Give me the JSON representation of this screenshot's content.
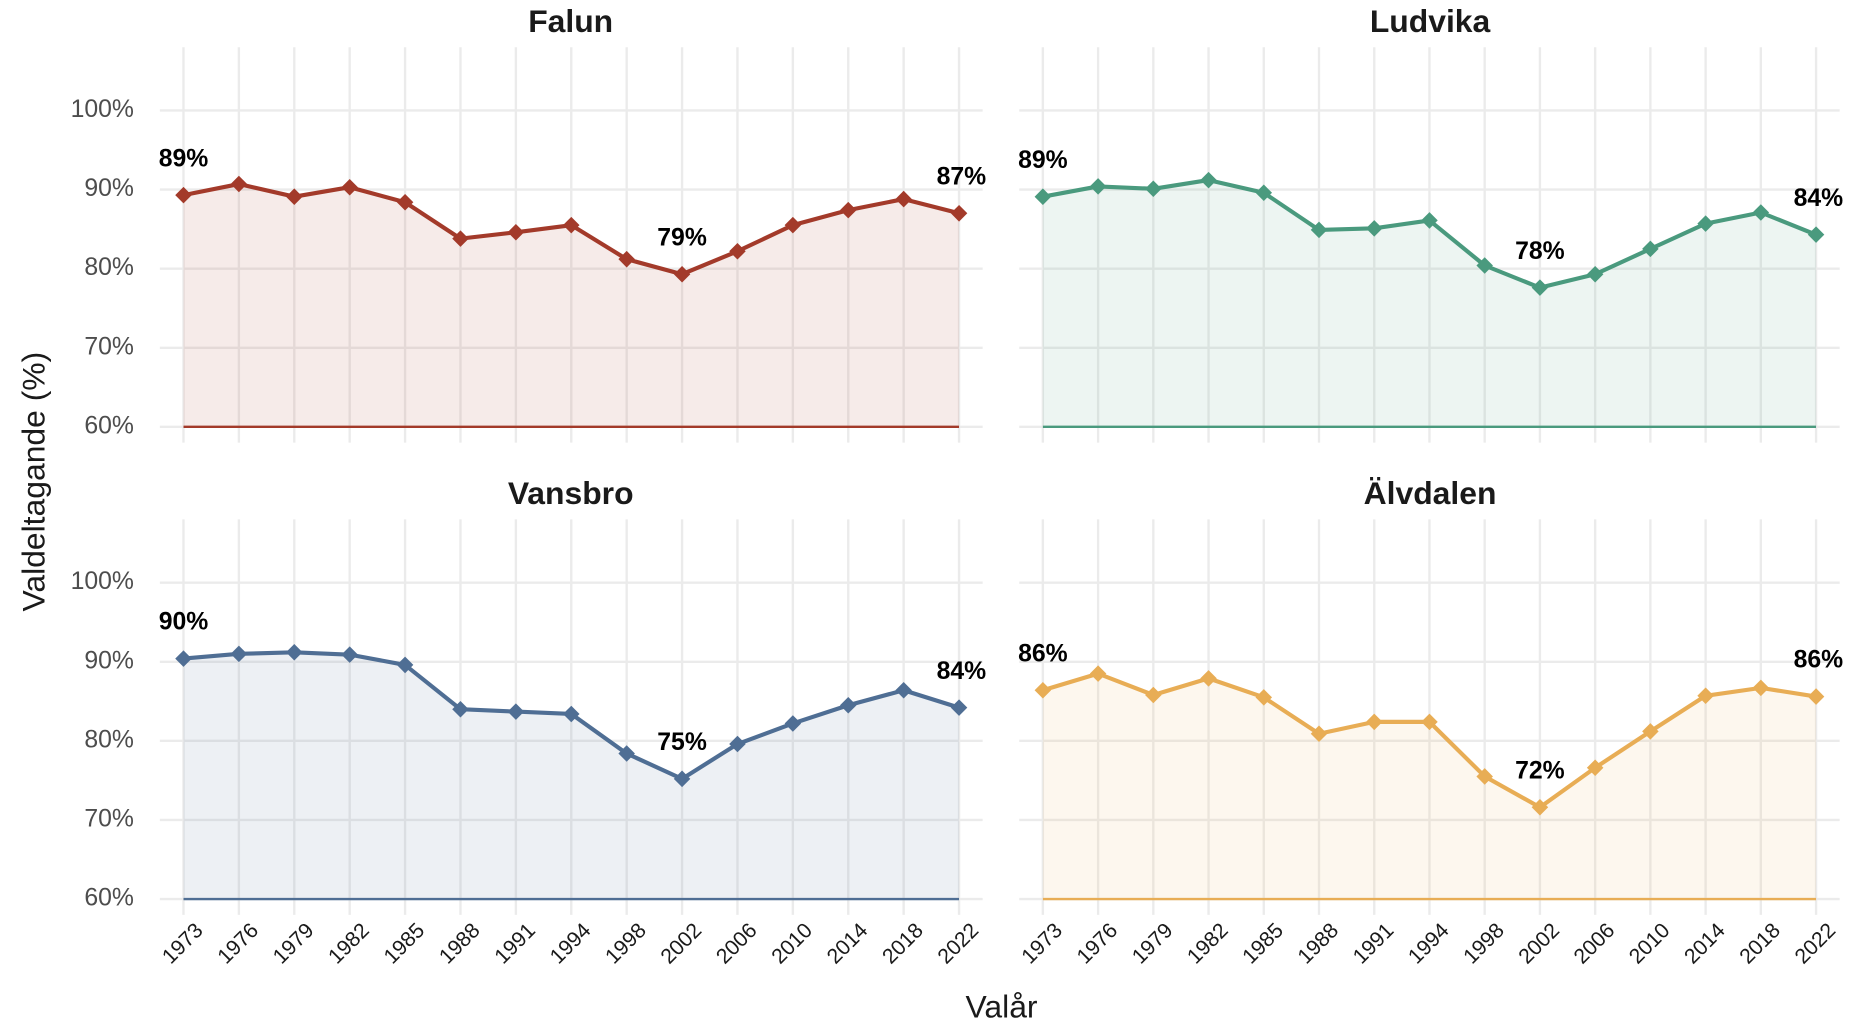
{
  "ylabel": "Valdeltagande (%)",
  "xlabel": "Valår",
  "chart_data": [
    {
      "type": "line",
      "title": "Falun",
      "color": "#a33a2a",
      "categories": [
        1973,
        1976,
        1979,
        1982,
        1985,
        1988,
        1991,
        1994,
        1998,
        2002,
        2006,
        2010,
        2014,
        2018,
        2022
      ],
      "values": [
        89.3,
        90.7,
        89.1,
        90.3,
        88.4,
        83.8,
        84.6,
        85.5,
        81.2,
        79.3,
        82.2,
        85.5,
        87.4,
        88.8,
        87.0
      ],
      "value_labels": [
        "89%",
        null,
        null,
        null,
        null,
        null,
        null,
        null,
        null,
        "79%",
        null,
        null,
        null,
        null,
        "87%"
      ],
      "ylim": [
        58,
        108
      ],
      "yticks": [
        {
          "value": 60,
          "label": "60%"
        },
        {
          "value": 70,
          "label": "70%"
        },
        {
          "value": 80,
          "label": "80%"
        },
        {
          "value": 90,
          "label": "90%"
        },
        {
          "value": 100,
          "label": "100%"
        }
      ],
      "grid": true
    },
    {
      "type": "line",
      "title": "Ludvika",
      "color": "#4a9a7e",
      "categories": [
        1973,
        1976,
        1979,
        1982,
        1985,
        1988,
        1991,
        1994,
        1998,
        2002,
        2006,
        2010,
        2014,
        2018,
        2022
      ],
      "values": [
        89.1,
        90.4,
        90.1,
        91.2,
        89.6,
        84.9,
        85.1,
        86.1,
        80.4,
        77.6,
        79.3,
        82.5,
        85.7,
        87.1,
        84.3
      ],
      "value_labels": [
        "89%",
        null,
        null,
        null,
        null,
        null,
        null,
        null,
        null,
        "78%",
        null,
        null,
        null,
        null,
        "84%"
      ],
      "ylim": [
        58,
        108
      ],
      "yticks": [
        {
          "value": 60,
          "label": "60%"
        },
        {
          "value": 70,
          "label": "70%"
        },
        {
          "value": 80,
          "label": "80%"
        },
        {
          "value": 90,
          "label": "90%"
        },
        {
          "value": 100,
          "label": "100%"
        }
      ],
      "grid": true
    },
    {
      "type": "line",
      "title": "Vansbro",
      "color": "#4f6e94",
      "categories": [
        1973,
        1976,
        1979,
        1982,
        1985,
        1988,
        1991,
        1994,
        1998,
        2002,
        2006,
        2010,
        2014,
        2018,
        2022
      ],
      "values": [
        90.4,
        91.0,
        91.2,
        90.9,
        89.6,
        84.0,
        83.7,
        83.4,
        78.4,
        75.2,
        79.6,
        82.2,
        84.5,
        86.4,
        84.2
      ],
      "value_labels": [
        "90%",
        null,
        null,
        null,
        null,
        null,
        null,
        null,
        null,
        "75%",
        null,
        null,
        null,
        null,
        "84%"
      ],
      "ylim": [
        58,
        108
      ],
      "yticks": [
        {
          "value": 60,
          "label": "60%"
        },
        {
          "value": 70,
          "label": "70%"
        },
        {
          "value": 80,
          "label": "80%"
        },
        {
          "value": 90,
          "label": "90%"
        },
        {
          "value": 100,
          "label": "100%"
        }
      ],
      "grid": true
    },
    {
      "type": "line",
      "title": "Älvdalen",
      "color": "#e8ad55",
      "categories": [
        1973,
        1976,
        1979,
        1982,
        1985,
        1988,
        1991,
        1994,
        1998,
        2002,
        2006,
        2010,
        2014,
        2018,
        2022
      ],
      "values": [
        86.4,
        88.5,
        85.8,
        87.9,
        85.5,
        80.9,
        82.4,
        82.4,
        75.5,
        71.6,
        76.6,
        81.2,
        85.7,
        86.7,
        85.6
      ],
      "value_labels": [
        "86%",
        null,
        null,
        null,
        null,
        null,
        null,
        null,
        null,
        "72%",
        null,
        null,
        null,
        null,
        "86%"
      ],
      "ylim": [
        58,
        108
      ],
      "yticks": [
        {
          "value": 60,
          "label": "60%"
        },
        {
          "value": 70,
          "label": "70%"
        },
        {
          "value": 80,
          "label": "80%"
        },
        {
          "value": 90,
          "label": "90%"
        },
        {
          "value": 100,
          "label": "100%"
        }
      ],
      "grid": true
    }
  ]
}
